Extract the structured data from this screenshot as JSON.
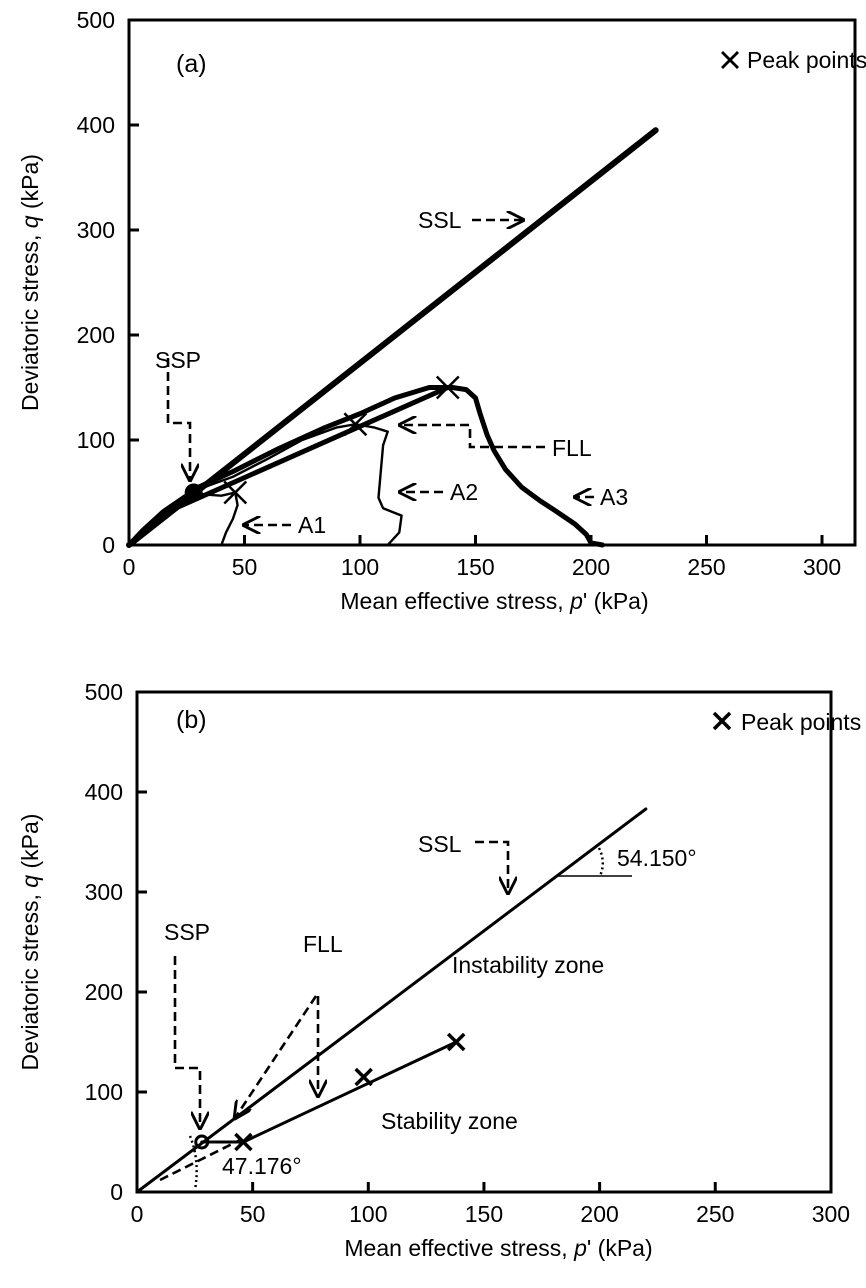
{
  "chart_data": [
    {
      "type": "line",
      "panel_label": "(a)",
      "xlabel": "Mean effective stress, p' (kPa)",
      "xlabel_parts": [
        "Mean effective stress, ",
        "p",
        "' (kPa)"
      ],
      "ylabel": "Deviatoric stress, q (kPa)",
      "ylabel_parts": [
        "Deviatoric stress, ",
        "q",
        " (kPa)"
      ],
      "xlim": [
        0,
        300
      ],
      "ylim": [
        0,
        500
      ],
      "xticks": [
        "0",
        "50",
        "100",
        "150",
        "200",
        "250",
        "300"
      ],
      "yticks": [
        "0",
        "100",
        "200",
        "300",
        "400",
        "500"
      ],
      "grid": false,
      "legend": {
        "position": "top-right",
        "marker": "×",
        "label": "Peak points"
      },
      "series": [
        {
          "name": "SSL",
          "style": "thick",
          "x": [
            0,
            228
          ],
          "y": [
            0,
            395
          ]
        },
        {
          "name": "FLL",
          "style": "thick",
          "x": [
            18,
            138
          ],
          "y": [
            33,
            150
          ]
        },
        {
          "name": "A1",
          "style": "thin",
          "x": [
            40,
            42,
            45,
            47,
            46,
            40,
            33,
            27,
            18,
            10,
            4,
            0
          ],
          "y": [
            0,
            12,
            25,
            38,
            50,
            47,
            48,
            50,
            38,
            22,
            10,
            0
          ]
        },
        {
          "name": "A2",
          "style": "thin",
          "x": [
            112,
            117,
            118,
            110,
            108,
            109,
            110,
            112,
            106,
            98,
            90,
            75,
            60,
            45,
            35,
            27,
            15,
            6,
            0
          ],
          "y": [
            0,
            12,
            28,
            35,
            45,
            70,
            95,
            108,
            112,
            115,
            112,
            100,
            82,
            65,
            57,
            50,
            32,
            15,
            0
          ]
        },
        {
          "name": "A3",
          "style": "thick",
          "x": [
            205,
            200,
            198,
            193,
            185,
            178,
            170,
            163,
            158,
            155,
            152,
            150,
            146,
            140,
            130,
            115,
            100,
            85,
            65,
            45,
            30,
            27,
            15,
            6,
            0
          ],
          "y": [
            0,
            2,
            10,
            20,
            32,
            42,
            55,
            72,
            90,
            105,
            125,
            140,
            148,
            150,
            150,
            140,
            125,
            112,
            92,
            70,
            55,
            50,
            32,
            14,
            0
          ]
        }
      ],
      "peak_points": {
        "x": [
          46,
          98,
          138
        ],
        "y": [
          50,
          115,
          150
        ]
      },
      "ssp_point": {
        "x": 28,
        "y": 50
      },
      "annotations": {
        "ssl": "SSL",
        "ssp": "SSP",
        "fll": "FLL",
        "a1": "A1",
        "a2": "A2",
        "a3": "A3"
      }
    },
    {
      "type": "line",
      "panel_label": "(b)",
      "xlabel": "Mean effective stress, p' (kPa)",
      "xlabel_parts": [
        "Mean effective stress, ",
        "p",
        "' (kPa)"
      ],
      "ylabel": "Deviatoric stress, q (kPa)",
      "ylabel_parts": [
        "Deviatoric stress, ",
        "q",
        " (kPa)"
      ],
      "xlim": [
        0,
        300
      ],
      "ylim": [
        0,
        500
      ],
      "xticks": [
        "0",
        "50",
        "100",
        "150",
        "200",
        "250",
        "300"
      ],
      "yticks": [
        "0",
        "100",
        "200",
        "300",
        "400",
        "500"
      ],
      "grid": false,
      "legend": {
        "position": "top-right",
        "marker": "×",
        "label": "Peak points"
      },
      "series": [
        {
          "name": "SSL",
          "style": "solid",
          "x": [
            0,
            220
          ],
          "y": [
            0,
            383
          ]
        },
        {
          "name": "FLL",
          "style": "solid",
          "x": [
            28,
            46,
            138
          ],
          "y": [
            50,
            50,
            150
          ]
        }
      ],
      "peak_points": {
        "x": [
          46,
          98,
          138
        ],
        "y": [
          50,
          115,
          150
        ]
      },
      "ssp_point": {
        "x": 28,
        "y": 50
      },
      "annotations": {
        "ssl": "SSL",
        "ssp": "SSP",
        "fll": "FLL",
        "ssl_angle": "54.150°",
        "fll_angle": "47.176°",
        "instability": "Instability zone",
        "stability": "Stability zone"
      }
    }
  ]
}
